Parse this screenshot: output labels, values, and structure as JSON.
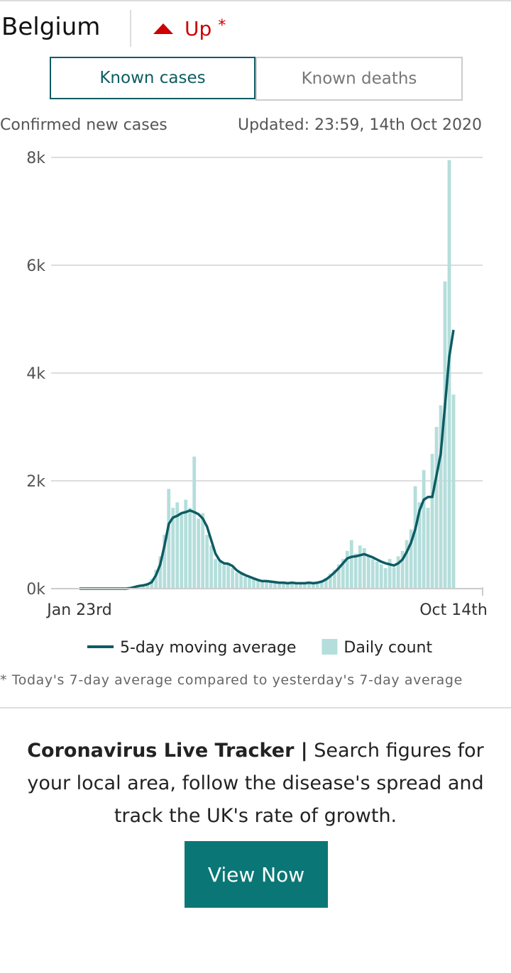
{
  "header": {
    "country": "Belgium",
    "trend": "Up",
    "trend_marker": "*"
  },
  "tabs": [
    {
      "label": "Known cases",
      "active": true
    },
    {
      "label": "Known deaths",
      "active": false
    }
  ],
  "chart_data": {
    "type": "combo",
    "subtitle": "Confirmed new cases",
    "updated": "Updated: 23:59, 14th Oct 2020",
    "categories": [
      "Jan 23rd",
      null,
      null,
      null,
      null,
      null,
      null,
      null,
      null,
      null,
      null,
      null,
      null,
      null,
      null,
      null,
      null,
      null,
      null,
      null,
      null,
      null,
      null,
      null,
      null,
      null,
      null,
      null,
      null,
      null,
      null,
      null,
      null,
      null,
      null,
      null,
      null,
      null,
      null,
      null,
      null,
      null,
      null,
      null,
      null,
      null,
      null,
      null,
      null,
      null,
      null,
      null,
      null,
      null,
      null,
      null,
      null,
      null,
      null,
      null,
      null,
      null,
      null,
      null,
      null,
      null,
      null,
      null,
      null,
      null,
      null,
      null,
      null,
      null,
      null,
      null,
      null,
      null,
      null,
      null,
      null,
      null,
      null,
      null,
      null,
      null,
      null,
      null,
      "Oct 14th"
    ],
    "series": [
      {
        "name": "5-day moving average",
        "type": "line",
        "color": "#0d5c63",
        "values": [
          0,
          0,
          0,
          0,
          0,
          0,
          0,
          0,
          0,
          0,
          0,
          0,
          10,
          30,
          50,
          60,
          80,
          120,
          250,
          450,
          800,
          1200,
          1320,
          1350,
          1400,
          1420,
          1450,
          1420,
          1380,
          1300,
          1150,
          900,
          650,
          520,
          470,
          460,
          420,
          340,
          290,
          250,
          220,
          190,
          160,
          140,
          140,
          130,
          120,
          110,
          110,
          100,
          110,
          100,
          100,
          100,
          110,
          100,
          110,
          130,
          170,
          230,
          300,
          380,
          470,
          560,
          590,
          600,
          620,
          640,
          610,
          580,
          540,
          500,
          470,
          450,
          430,
          470,
          540,
          680,
          850,
          1100,
          1450,
          1650,
          1700,
          1700,
          2100,
          2500,
          3400,
          4300,
          4800
        ]
      },
      {
        "name": "Daily count",
        "type": "bar",
        "color": "#b4dedb",
        "values": [
          0,
          0,
          0,
          0,
          0,
          0,
          0,
          0,
          0,
          0,
          0,
          0,
          20,
          40,
          60,
          80,
          100,
          180,
          350,
          600,
          1000,
          1850,
          1500,
          1600,
          1400,
          1650,
          1500,
          2450,
          1300,
          1400,
          1000,
          800,
          550,
          500,
          450,
          480,
          380,
          300,
          280,
          220,
          200,
          180,
          150,
          130,
          160,
          120,
          110,
          100,
          120,
          90,
          130,
          100,
          90,
          110,
          120,
          90,
          120,
          150,
          200,
          280,
          350,
          450,
          550,
          700,
          900,
          650,
          800,
          750,
          600,
          550,
          500,
          450,
          380,
          550,
          400,
          600,
          700,
          900,
          1100,
          1900,
          1600,
          2200,
          1500,
          2500,
          3000,
          3400,
          5700,
          7950,
          3600
        ]
      }
    ],
    "ylim": [
      0,
      8000
    ],
    "yticks": [
      {
        "value": 0,
        "label": "0k"
      },
      {
        "value": 2000,
        "label": "2k"
      },
      {
        "value": 4000,
        "label": "4k"
      },
      {
        "value": 6000,
        "label": "6k"
      },
      {
        "value": 8000,
        "label": "8k"
      }
    ],
    "grid": true
  },
  "footnote": "* Today's 7-day average compared to yesterday's 7-day average",
  "promo": {
    "title": "Coronavirus Live Tracker |",
    "text": "Search figures for your local area, follow the disease's spread and track the UK's rate of growth.",
    "button": "View Now"
  }
}
